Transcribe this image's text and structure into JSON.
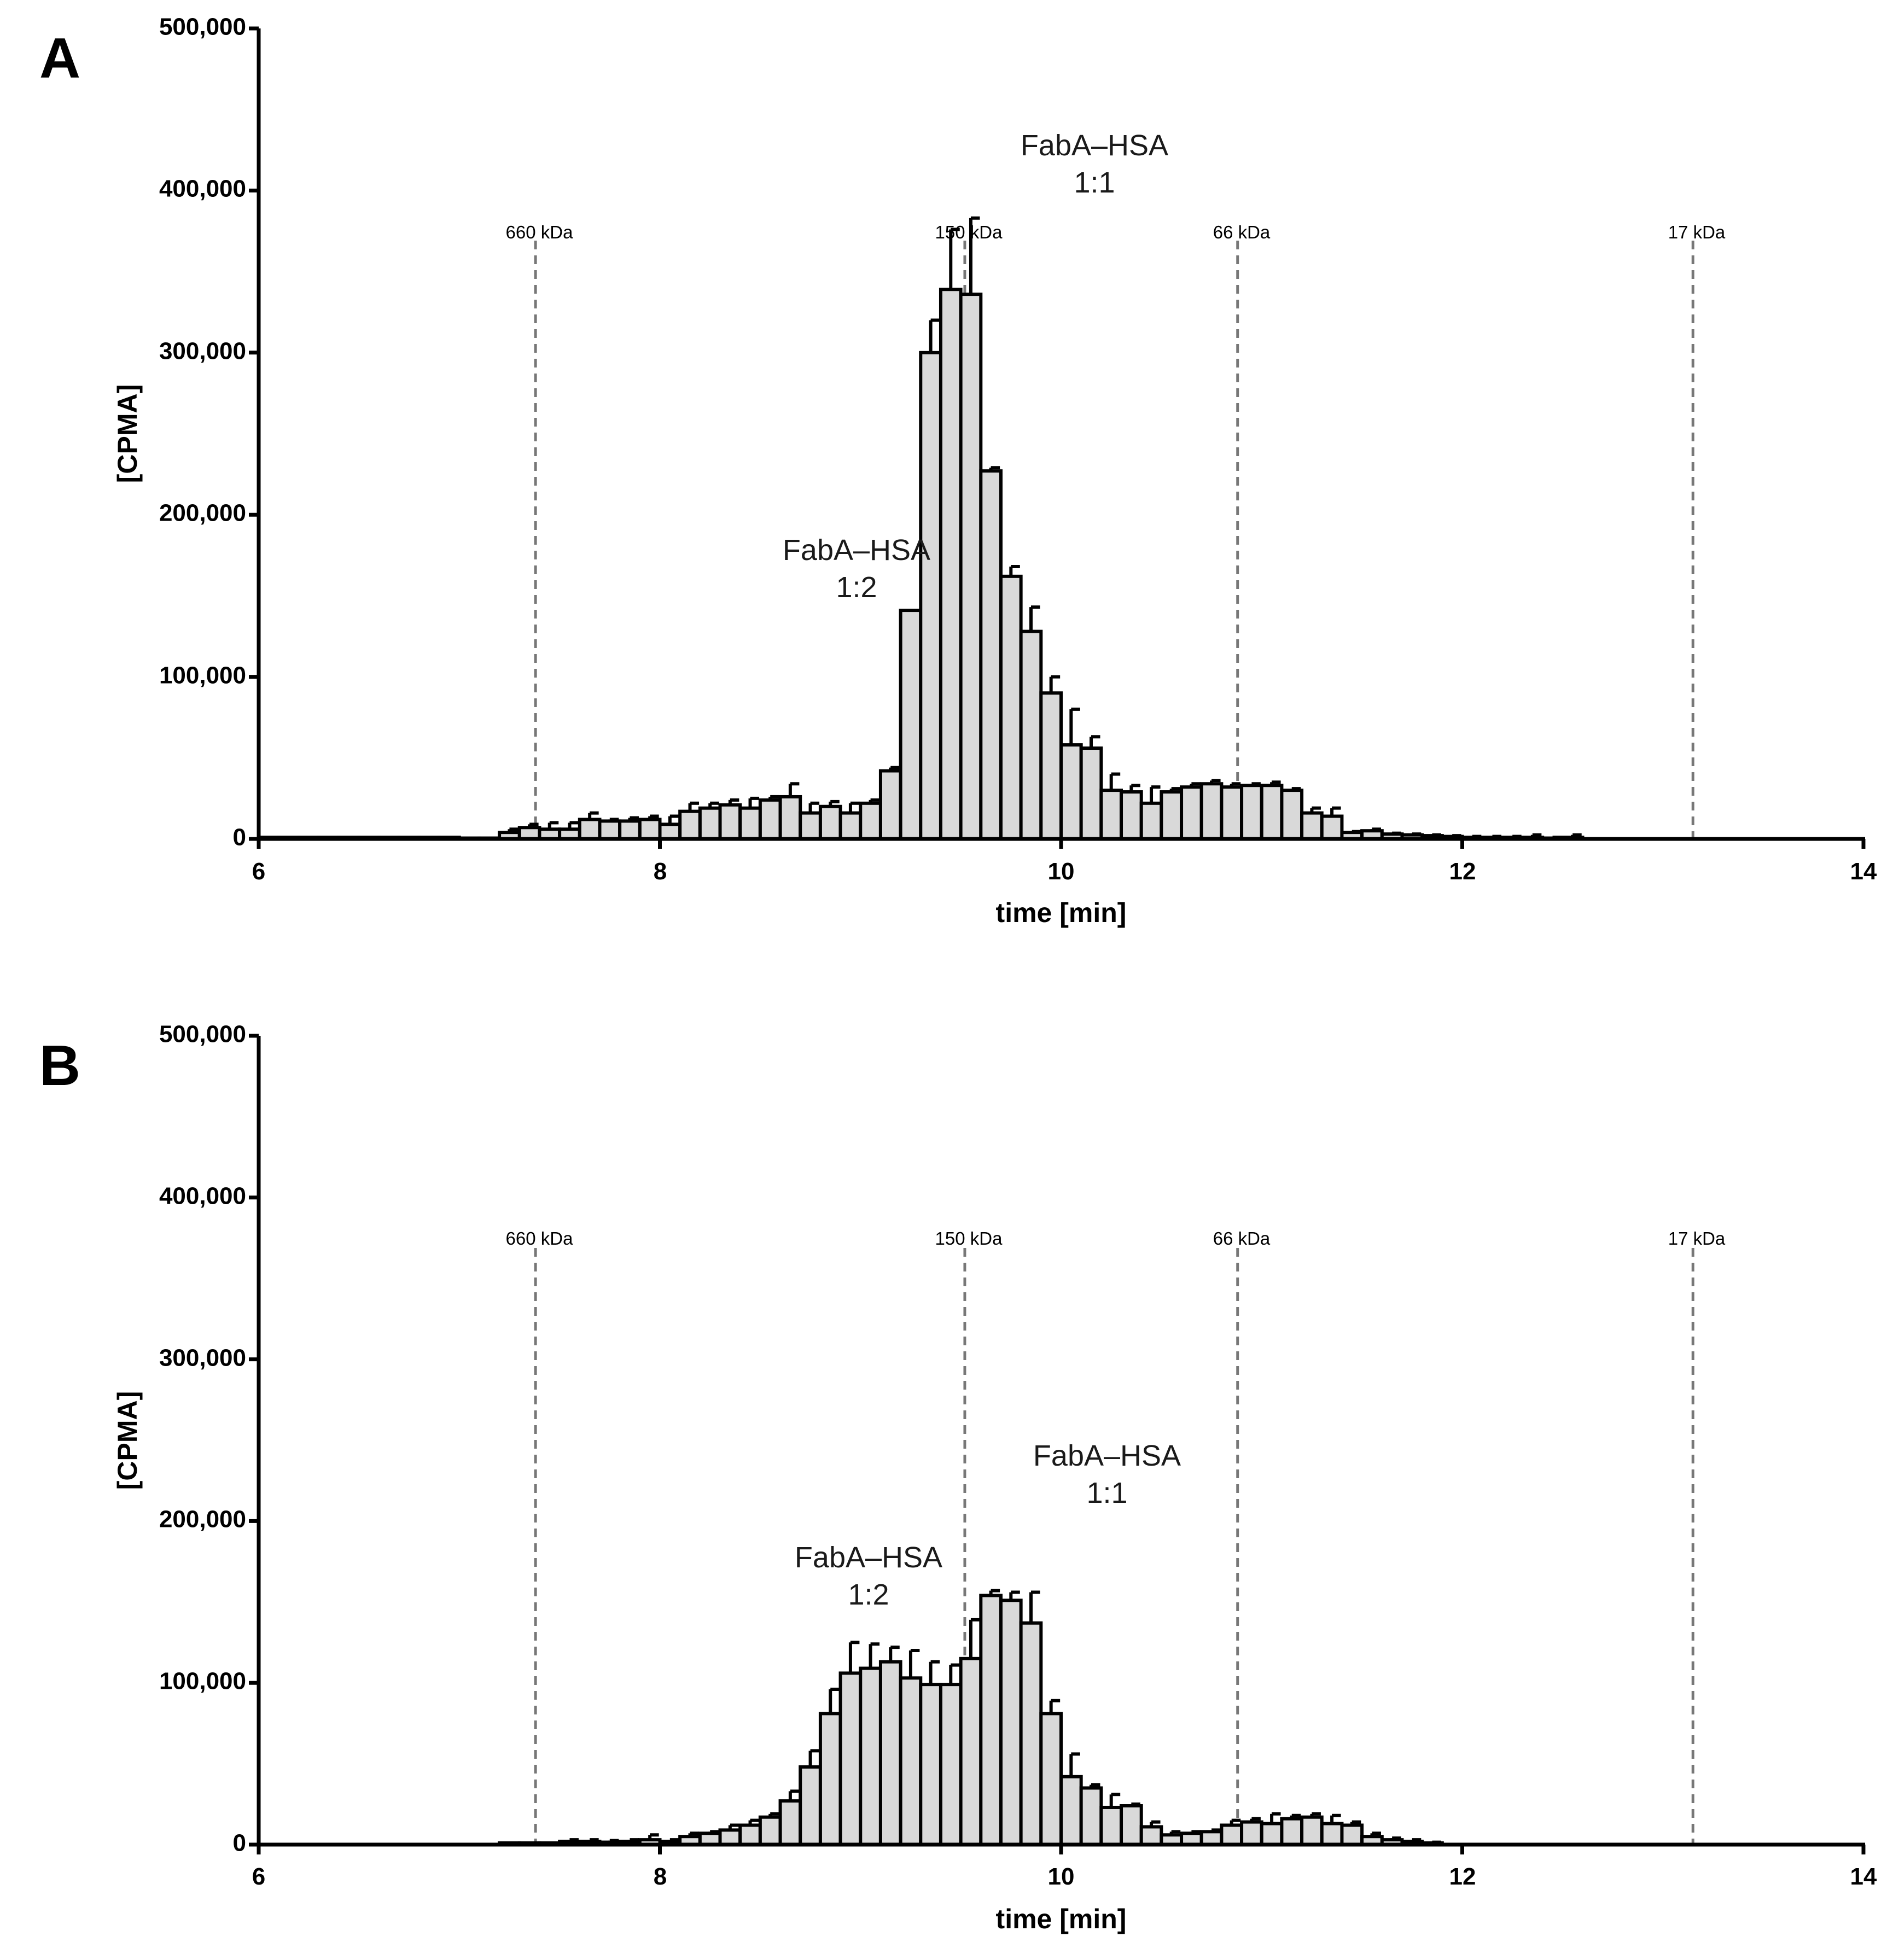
{
  "chart_data": [
    {
      "panel": "A",
      "type": "bar",
      "xlabel": "time [min]",
      "ylabel": "[CPMA]",
      "xlim": [
        6,
        14
      ],
      "ylim": [
        0,
        500000
      ],
      "xticks": [
        6,
        8,
        10,
        12,
        14
      ],
      "xtick_labels": [
        "6",
        "8",
        "10",
        "12",
        "14"
      ],
      "yticks": [
        0,
        100000,
        200000,
        300000,
        400000,
        500000
      ],
      "ytick_labels": [
        "0",
        "100,000",
        "200,000",
        "300,000",
        "400,000",
        "500,000"
      ],
      "bar_width": 0.1,
      "bar_fill": "#d9d9d9",
      "bar_stroke": "#000000",
      "reference_lines": [
        {
          "x": 7.38,
          "label": "660 kDa"
        },
        {
          "x": 9.52,
          "label": "150 kDa"
        },
        {
          "x": 10.88,
          "label": "66 kDa"
        },
        {
          "x": 13.15,
          "label": "17 kDa"
        }
      ],
      "annotations": [
        {
          "line1": "FabA–HSA",
          "line2": "1:2",
          "x": 8.98,
          "y": 178000
        },
        {
          "line1": "FabA–HSA",
          "line2": "1:1",
          "x": 10.17,
          "y": 425000
        }
      ],
      "x": [
        6.05,
        6.15,
        6.25,
        6.35,
        6.45,
        6.55,
        6.65,
        6.75,
        6.85,
        6.95,
        7.05,
        7.15,
        7.25,
        7.35,
        7.45,
        7.55,
        7.65,
        7.75,
        7.85,
        7.95,
        8.05,
        8.15,
        8.25,
        8.35,
        8.45,
        8.55,
        8.65,
        8.75,
        8.85,
        8.95,
        9.05,
        9.15,
        9.25,
        9.35,
        9.45,
        9.55,
        9.65,
        9.75,
        9.85,
        9.95,
        10.05,
        10.15,
        10.25,
        10.35,
        10.45,
        10.55,
        10.65,
        10.75,
        10.85,
        10.95,
        11.05,
        11.15,
        11.25,
        11.35,
        11.45,
        11.55,
        11.65,
        11.75,
        11.85,
        11.95,
        12.05,
        12.15,
        12.25,
        12.35,
        12.45,
        12.55,
        12.65,
        12.75,
        12.85,
        12.95,
        13.05,
        13.15,
        13.25,
        13.35,
        13.45,
        13.55,
        13.65,
        13.75,
        13.85,
        13.95
      ],
      "values": [
        1000,
        1000,
        1000,
        1000,
        1000,
        1000,
        1000,
        1000,
        1000,
        1000,
        500,
        500,
        4000,
        7000,
        6000,
        6000,
        12000,
        11000,
        11000,
        12000,
        9000,
        17000,
        19000,
        21000,
        19000,
        24000,
        26000,
        16000,
        20000,
        16000,
        22000,
        42000,
        141000,
        300000,
        339000,
        336000,
        227000,
        162000,
        128000,
        90000,
        58000,
        56000,
        30000,
        29000,
        22000,
        29000,
        32000,
        34000,
        32000,
        33000,
        33000,
        30000,
        16000,
        14000,
        4000,
        5000,
        3000,
        2500,
        2000,
        1500,
        1000,
        1000,
        1000,
        1000,
        500,
        1000,
        0,
        0,
        0,
        0,
        0,
        0,
        0,
        0,
        0,
        0,
        0,
        0,
        0,
        0
      ],
      "errors": [
        0,
        0,
        0,
        0,
        0,
        0,
        0,
        0,
        0,
        0,
        0,
        0,
        2000,
        2000,
        4000,
        4000,
        4000,
        1000,
        2000,
        2000,
        5000,
        5000,
        3000,
        3000,
        6000,
        2000,
        8000,
        6000,
        3000,
        6000,
        2000,
        2000,
        0,
        20000,
        37000,
        47000,
        2000,
        6000,
        15000,
        10000,
        22000,
        7000,
        10000,
        4000,
        10000,
        2000,
        2000,
        2000,
        2000,
        1000,
        2000,
        1000,
        3000,
        5000,
        500,
        1000,
        500,
        500,
        500,
        500,
        500,
        500,
        500,
        1500,
        500,
        1500,
        0,
        0,
        0,
        0,
        0,
        0,
        0,
        0,
        0,
        0,
        0,
        0,
        0,
        0
      ]
    },
    {
      "panel": "B",
      "type": "bar",
      "xlabel": "time [min]",
      "ylabel": "[CPMA]",
      "xlim": [
        6,
        14
      ],
      "ylim": [
        0,
        500000
      ],
      "xticks": [
        6,
        8,
        10,
        12,
        14
      ],
      "xtick_labels": [
        "6",
        "8",
        "10",
        "12",
        "14"
      ],
      "yticks": [
        0,
        100000,
        200000,
        300000,
        400000,
        500000
      ],
      "ytick_labels": [
        "0",
        "100,000",
        "200,000",
        "300,000",
        "400,000",
        "500,000"
      ],
      "bar_width": 0.1,
      "bar_fill": "#d9d9d9",
      "bar_stroke": "#000000",
      "reference_lines": [
        {
          "x": 7.38,
          "label": "660 kDa"
        },
        {
          "x": 9.52,
          "label": "150 kDa"
        },
        {
          "x": 10.88,
          "label": "66 kDa"
        },
        {
          "x": 13.15,
          "label": "17 kDa"
        }
      ],
      "annotations": [
        {
          "line1": "FabA–HSA",
          "line2": "1:2",
          "x": 9.05,
          "y": 173000
        },
        {
          "line1": "FabA–HSA",
          "line2": "1:1",
          "x": 10.23,
          "y": 235000
        }
      ],
      "x": [
        6.05,
        6.15,
        6.25,
        6.35,
        6.45,
        6.55,
        6.65,
        6.75,
        6.85,
        6.95,
        7.05,
        7.15,
        7.25,
        7.35,
        7.45,
        7.55,
        7.65,
        7.75,
        7.85,
        7.95,
        8.05,
        8.15,
        8.25,
        8.35,
        8.45,
        8.55,
        8.65,
        8.75,
        8.85,
        8.95,
        9.05,
        9.15,
        9.25,
        9.35,
        9.45,
        9.55,
        9.65,
        9.75,
        9.85,
        9.95,
        10.05,
        10.15,
        10.25,
        10.35,
        10.45,
        10.55,
        10.65,
        10.75,
        10.85,
        10.95,
        11.05,
        11.15,
        11.25,
        11.35,
        11.45,
        11.55,
        11.65,
        11.75,
        11.85,
        11.95,
        12.05,
        12.15,
        12.25,
        12.35,
        12.45,
        12.55,
        12.65,
        12.75,
        12.85,
        12.95,
        13.05,
        13.15,
        13.25,
        13.35,
        13.45,
        13.55,
        13.65,
        13.75,
        13.85,
        13.95
      ],
      "values": [
        0,
        0,
        0,
        0,
        0,
        0,
        0,
        0,
        0,
        0,
        0,
        0,
        1000,
        1000,
        1000,
        2000,
        2000,
        1500,
        2000,
        3000,
        2000,
        5000,
        7000,
        9000,
        12000,
        17000,
        27000,
        48000,
        81000,
        106000,
        109000,
        113000,
        103000,
        99000,
        99000,
        115000,
        154000,
        151000,
        137000,
        81000,
        42000,
        35000,
        23000,
        24000,
        11000,
        6000,
        7000,
        8000,
        12000,
        14000,
        13000,
        16000,
        17000,
        13000,
        12000,
        5000,
        3000,
        2000,
        1000,
        0,
        0,
        0,
        0,
        0,
        0,
        0,
        0,
        0,
        0,
        0,
        0,
        0,
        0,
        0,
        0,
        0,
        0,
        0,
        0,
        0
      ],
      "errors": [
        0,
        0,
        0,
        0,
        0,
        0,
        0,
        0,
        0,
        0,
        0,
        0,
        0,
        0,
        0,
        1000,
        1000,
        1000,
        1000,
        3000,
        1000,
        2000,
        1000,
        3000,
        3000,
        2000,
        6000,
        10000,
        15000,
        19000,
        15000,
        9000,
        17000,
        14000,
        12000,
        24000,
        3000,
        5000,
        19000,
        8000,
        14000,
        2000,
        8000,
        1000,
        3000,
        2000,
        1000,
        1000,
        3000,
        2000,
        6000,
        2000,
        2000,
        5000,
        2000,
        2000,
        1000,
        1000,
        500,
        0,
        0,
        0,
        0,
        0,
        0,
        0,
        0,
        0,
        0,
        0,
        0,
        0,
        0,
        0,
        0,
        0,
        0,
        0,
        0,
        0
      ]
    }
  ]
}
